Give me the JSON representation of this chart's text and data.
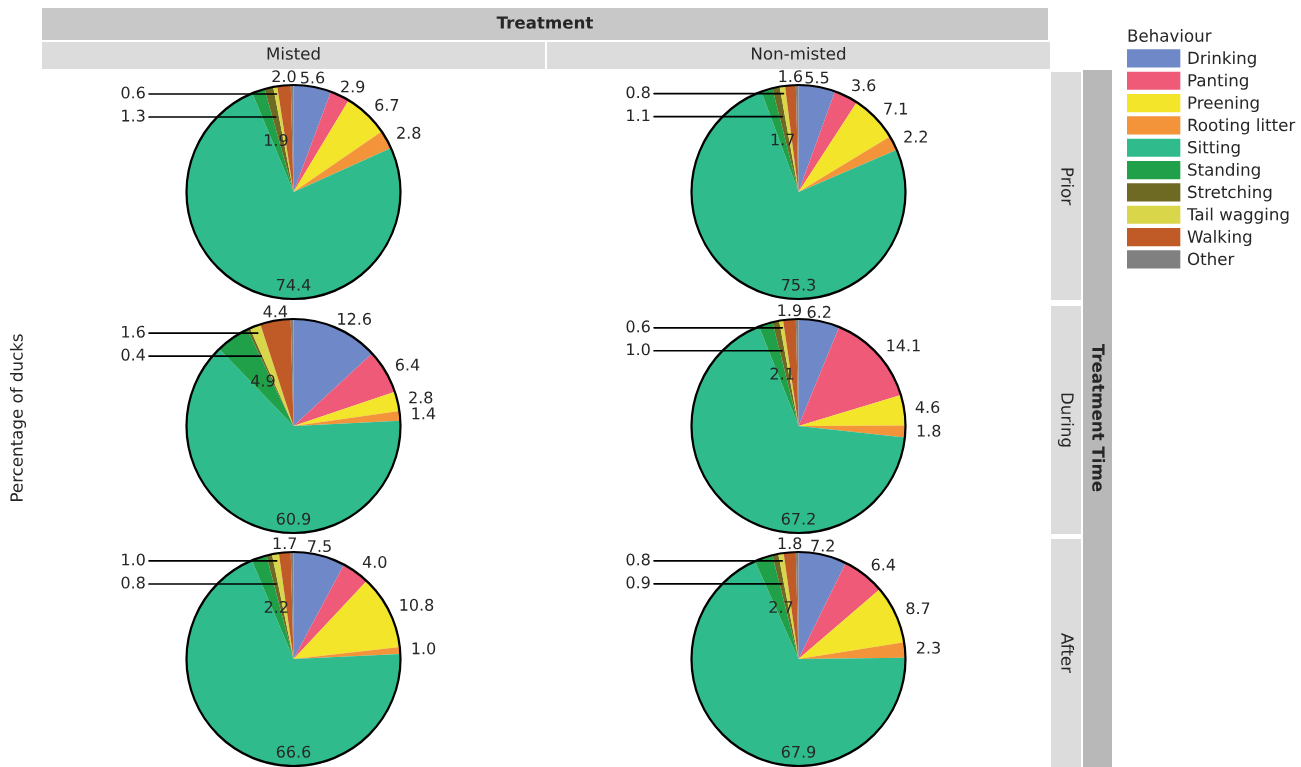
{
  "chart_data": [
    {
      "type": "pie",
      "title": "Misted",
      "ylabel": "Percentage of ducks",
      "legend": "right",
      "legend_title": "Behaviour",
      "annotations": [
        "Treatment",
        "Treatment Time"
      ],
      "categories": [
        "Drinking",
        "Panting",
        "Preening",
        "Rooting litter",
        "Sitting",
        "Standing",
        "Stretching",
        "Tail wagging",
        "Walking",
        "Other"
      ],
      "values": [
        5.6,
        2.9,
        6.7,
        2.8,
        74.4,
        1.9,
        1.3,
        0.6,
        2.0,
        0.4
      ],
      "value_labels": [
        "5.6",
        "2.9",
        "6.7",
        "2.8",
        "74.4",
        "1.9",
        "1.3",
        "0.6",
        "2.0",
        null
      ],
      "colors": [
        "#6f88c8",
        "#ee5a78",
        "#f2e52a",
        "#f4943a",
        "#2fbb8c",
        "#20a048",
        "#6e6a24",
        "#d9d64a",
        "#c05a26",
        "#808080"
      ]
    },
    {
      "type": "pie",
      "title": "Non-misted",
      "y2label": "Prior",
      "categories": [
        null,
        null,
        null,
        null,
        null,
        null,
        null,
        null,
        null,
        null
      ],
      "values": [
        5.5,
        3.6,
        7.1,
        2.2,
        75.3,
        1.7,
        1.1,
        0.8,
        1.6,
        0.4
      ],
      "value_labels": [
        "5.5",
        "3.6",
        "7.1",
        "2.2",
        "75.3",
        "1.7",
        "1.1",
        "0.8",
        "1.6",
        null
      ],
      "colors": [
        "#6f88c8",
        "#ee5a78",
        "#f2e52a",
        "#f4943a",
        "#2fbb8c",
        "#20a048",
        "#6e6a24",
        "#d9d64a",
        "#c05a26",
        "#808080"
      ]
    },
    {
      "type": "pie",
      "categories": [
        null,
        null,
        null,
        null,
        null,
        null,
        null,
        null,
        null,
        null
      ],
      "values": [
        12.6,
        6.4,
        2.8,
        1.4,
        60.9,
        4.9,
        0.4,
        1.6,
        4.4,
        0.4
      ],
      "value_labels": [
        "12.6",
        "6.4",
        "2.8",
        "1.4",
        "60.9",
        "4.9",
        "0.4",
        "1.6",
        "4.4",
        null
      ],
      "colors": [
        "#6f88c8",
        "#ee5a78",
        "#f2e52a",
        "#f4943a",
        "#2fbb8c",
        "#20a048",
        "#6e6a24",
        "#d9d64a",
        "#c05a26",
        "#808080"
      ]
    },
    {
      "type": "pie",
      "y2label": "During",
      "categories": [
        null,
        null,
        null,
        null,
        null,
        null,
        null,
        null,
        null,
        null
      ],
      "values": [
        6.2,
        14.1,
        4.6,
        1.8,
        67.2,
        2.1,
        1.0,
        0.6,
        1.9,
        0.4
      ],
      "value_labels": [
        "6.2",
        "14.1",
        "4.6",
        "1.8",
        "67.2",
        "2.1",
        "1.0",
        "0.6",
        "1.9",
        null
      ],
      "colors": [
        "#6f88c8",
        "#ee5a78",
        "#f2e52a",
        "#f4943a",
        "#2fbb8c",
        "#20a048",
        "#6e6a24",
        "#d9d64a",
        "#c05a26",
        "#808080"
      ]
    },
    {
      "type": "pie",
      "categories": [
        null,
        null,
        null,
        null,
        null,
        null,
        null,
        null,
        null,
        null
      ],
      "values": [
        7.5,
        4.0,
        10.8,
        1.0,
        66.6,
        2.2,
        0.8,
        1.0,
        1.7,
        0.4
      ],
      "value_labels": [
        "7.5",
        "4.0",
        "10.8",
        "1.0",
        "66.6",
        "2.2",
        "0.8",
        "1.0",
        "1.7",
        null
      ],
      "colors": [
        "#6f88c8",
        "#ee5a78",
        "#f2e52a",
        "#f4943a",
        "#2fbb8c",
        "#20a048",
        "#6e6a24",
        "#d9d64a",
        "#c05a26",
        "#808080"
      ]
    },
    {
      "type": "pie",
      "y2label": "After",
      "categories": [
        null,
        null,
        null,
        null,
        null,
        null,
        null,
        null,
        null,
        null
      ],
      "values": [
        7.2,
        6.4,
        8.7,
        2.3,
        67.9,
        2.7,
        0.9,
        0.8,
        1.8,
        0.4
      ],
      "value_labels": [
        "7.2",
        "6.4",
        "8.7",
        "2.3",
        "67.9",
        "2.7",
        "0.9",
        "0.8",
        "1.8",
        null
      ],
      "colors": [
        "#6f88c8",
        "#ee5a78",
        "#f2e52a",
        "#f4943a",
        "#2fbb8c",
        "#20a048",
        "#6e6a24",
        "#d9d64a",
        "#c05a26",
        "#808080"
      ]
    }
  ]
}
